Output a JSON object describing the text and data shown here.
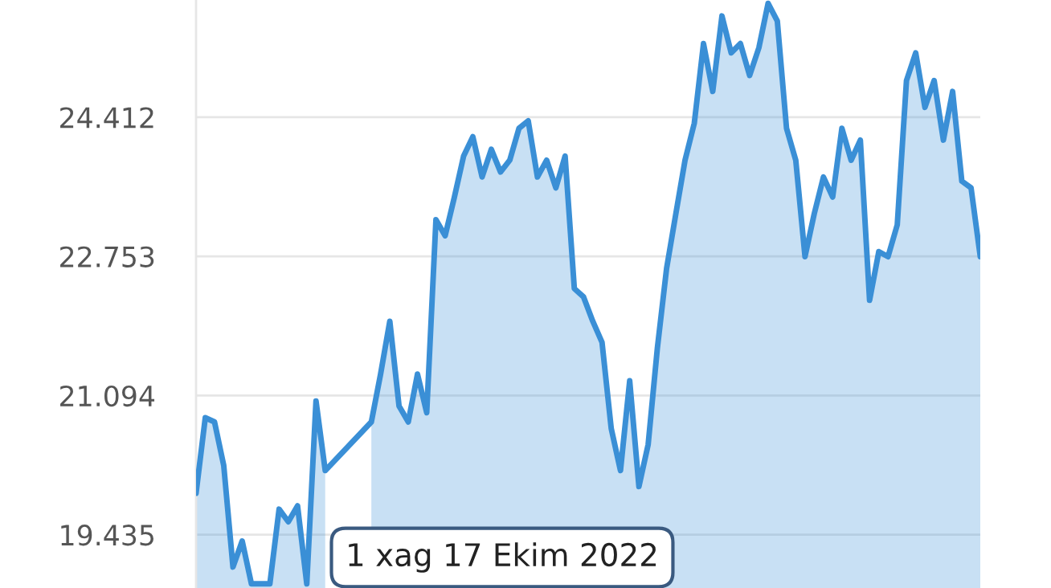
{
  "chart_data": {
    "type": "area",
    "categories": [
      null,
      null,
      null,
      null,
      null,
      null,
      null,
      null,
      null,
      null,
      null,
      null,
      null,
      null,
      null,
      null,
      null,
      null,
      null,
      null,
      null,
      null,
      null,
      null,
      null,
      null,
      null,
      null,
      null,
      null,
      null,
      null,
      null,
      null,
      null,
      null,
      null,
      null,
      null,
      null,
      null,
      null,
      null,
      null,
      null,
      null,
      null,
      null,
      null,
      null,
      null,
      null,
      null,
      null,
      null,
      null,
      null,
      null,
      null,
      null,
      null,
      null,
      null,
      null,
      null,
      null,
      null,
      null,
      null,
      null,
      null,
      null,
      null,
      null,
      null,
      null,
      null,
      null,
      null,
      null,
      null,
      null,
      null,
      null,
      null,
      null
    ],
    "series": [
      {
        "color": "#3a8fd6",
        "values": [
          19.93,
          20.83,
          20.78,
          20.26,
          19.05,
          19.36,
          18.85,
          18.85,
          18.85,
          19.74,
          19.59,
          19.78,
          18.85,
          21.03,
          20.2,
          null,
          null,
          null,
          null,
          20.78,
          21.35,
          21.98,
          20.97,
          20.78,
          21.35,
          20.89,
          23.19,
          23.0,
          23.46,
          23.95,
          24.18,
          23.7,
          24.03,
          23.76,
          23.9,
          24.28,
          24.37,
          23.7,
          23.9,
          23.57,
          23.95,
          22.37,
          22.27,
          21.98,
          21.73,
          20.7,
          20.2,
          21.27,
          20.01,
          20.51,
          21.66,
          22.61,
          23.26,
          23.9,
          24.34,
          25.29,
          24.72,
          25.62,
          25.18,
          25.29,
          24.91,
          25.24,
          25.77,
          25.56,
          24.28,
          23.9,
          22.75,
          23.26,
          23.7,
          23.46,
          24.28,
          23.9,
          24.14,
          22.23,
          22.81,
          22.75,
          23.13,
          24.85,
          25.18,
          24.53,
          24.85,
          24.14,
          24.72,
          23.65,
          23.57,
          22.75
        ]
      }
    ],
    "ylim": [
      18.8,
      25.81
    ],
    "yticks": [
      19.435,
      21.094,
      22.753,
      24.412
    ],
    "grid": "y",
    "annotations": [
      "1 xag 17 Ekim 2022"
    ]
  }
}
